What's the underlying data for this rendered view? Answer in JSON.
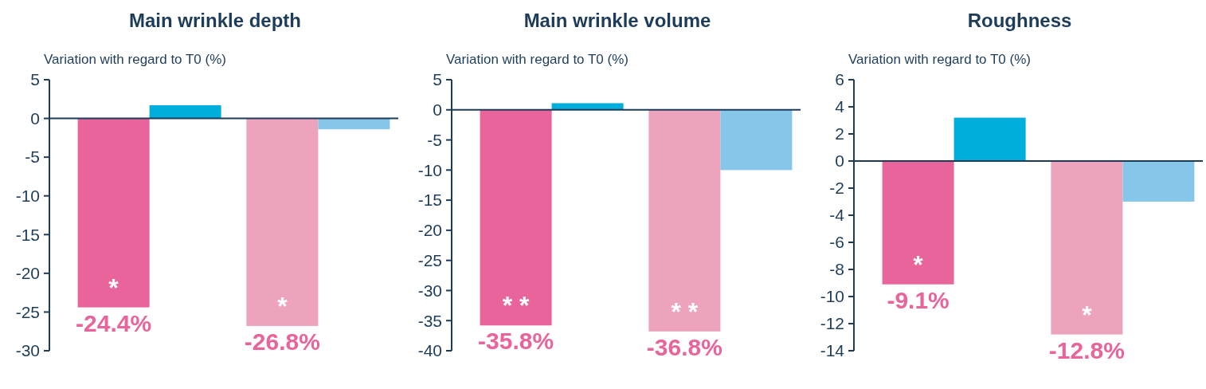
{
  "chart_data": [
    {
      "type": "bar",
      "title": "Main wrinkle depth",
      "ylabel": "Variation with regard to T0 (%)",
      "categories": [
        null,
        null
      ],
      "ylim": [
        -30,
        5
      ],
      "yticks": [
        -30,
        -25,
        -20,
        -15,
        -10,
        -5,
        0,
        5
      ],
      "annotations": [
        "*",
        "*"
      ],
      "series": [
        {
          "color": "#e8649a",
          "colors": [
            "#e8649a",
            "#eda3bb"
          ],
          "values": [
            -24.4,
            -26.8
          ],
          "value_labels": [
            "-24.4%",
            "-26.8%"
          ]
        },
        {
          "colors": [
            "#00aedb",
            "#86c6e8"
          ],
          "values": [
            1.7,
            -1.4
          ]
        }
      ]
    },
    {
      "type": "bar",
      "title": "Main wrinkle volume",
      "ylabel": "Variation with regard to T0 (%)",
      "categories": [
        null,
        null
      ],
      "ylim": [
        -40,
        5
      ],
      "yticks": [
        -40,
        -35,
        -30,
        -25,
        -20,
        -15,
        -10,
        -5,
        0,
        5
      ],
      "annotations": [
        "* *",
        "* *"
      ],
      "series": [
        {
          "color": "#e8649a",
          "colors": [
            "#e8649a",
            "#eda3bb"
          ],
          "values": [
            -35.8,
            -36.8
          ],
          "value_labels": [
            "-35.8%",
            "-36.8%"
          ]
        },
        {
          "colors": [
            "#00aedb",
            "#86c6e8"
          ],
          "values": [
            1.1,
            -10
          ]
        }
      ]
    },
    {
      "type": "bar",
      "title": "Roughness",
      "ylabel": "Variation with regard to T0 (%)",
      "categories": [
        null,
        null
      ],
      "ylim": [
        -14,
        6
      ],
      "yticks": [
        -14,
        -12,
        -10,
        -8,
        -6,
        -4,
        -2,
        0,
        2,
        4,
        6
      ],
      "annotations": [
        "*",
        "*"
      ],
      "series": [
        {
          "color": "#e8649a",
          "colors": [
            "#e8649a",
            "#eda3bb"
          ],
          "values": [
            -9.1,
            -12.8
          ],
          "value_labels": [
            "-9.1%",
            "-12.8%"
          ]
        },
        {
          "colors": [
            "#00aedb",
            "#86c6e8"
          ],
          "values": [
            3.2,
            -3
          ]
        }
      ]
    }
  ]
}
